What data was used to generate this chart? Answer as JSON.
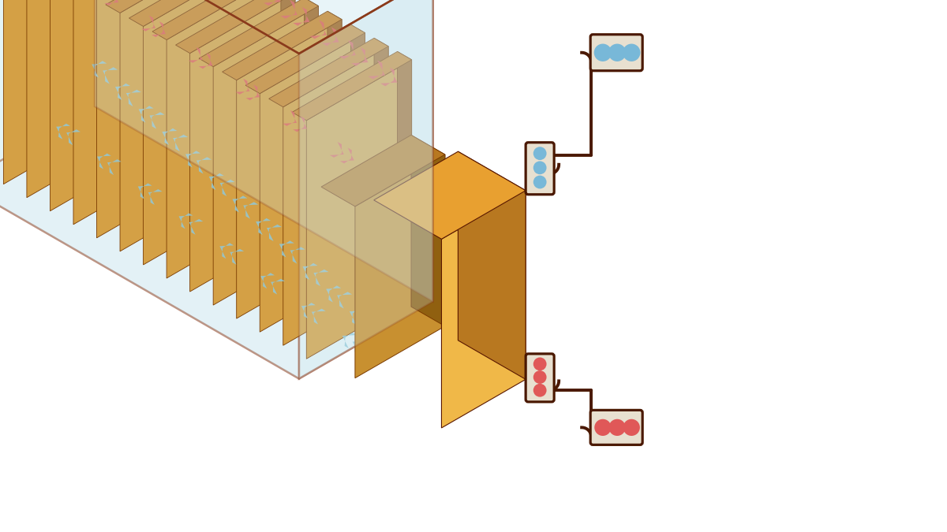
{
  "bg_color": "#ffffff",
  "tank_ec": "#8B3A1A",
  "tank_fill": "#cce8f0",
  "tank_fill_alpha": 0.25,
  "tank_lw": 1.8,
  "server_top": "#c8852a",
  "server_front": "#a06520",
  "server_side": "#d4a045",
  "base_top": "#b87820",
  "base_front": "#906010",
  "base_side": "#c89030",
  "pump_top": "#e8a030",
  "pump_front": "#b87820",
  "pump_side": "#f0b848",
  "pipe_ec": "#4a1800",
  "pipe_fc": "#e8e0d0",
  "pipe_lw": 2.8,
  "hot_color": "#e05858",
  "cold_color": "#78b8d8",
  "num_servers": 14,
  "chevron_hot": "#e05858",
  "chevron_cold": "#90c8d8"
}
